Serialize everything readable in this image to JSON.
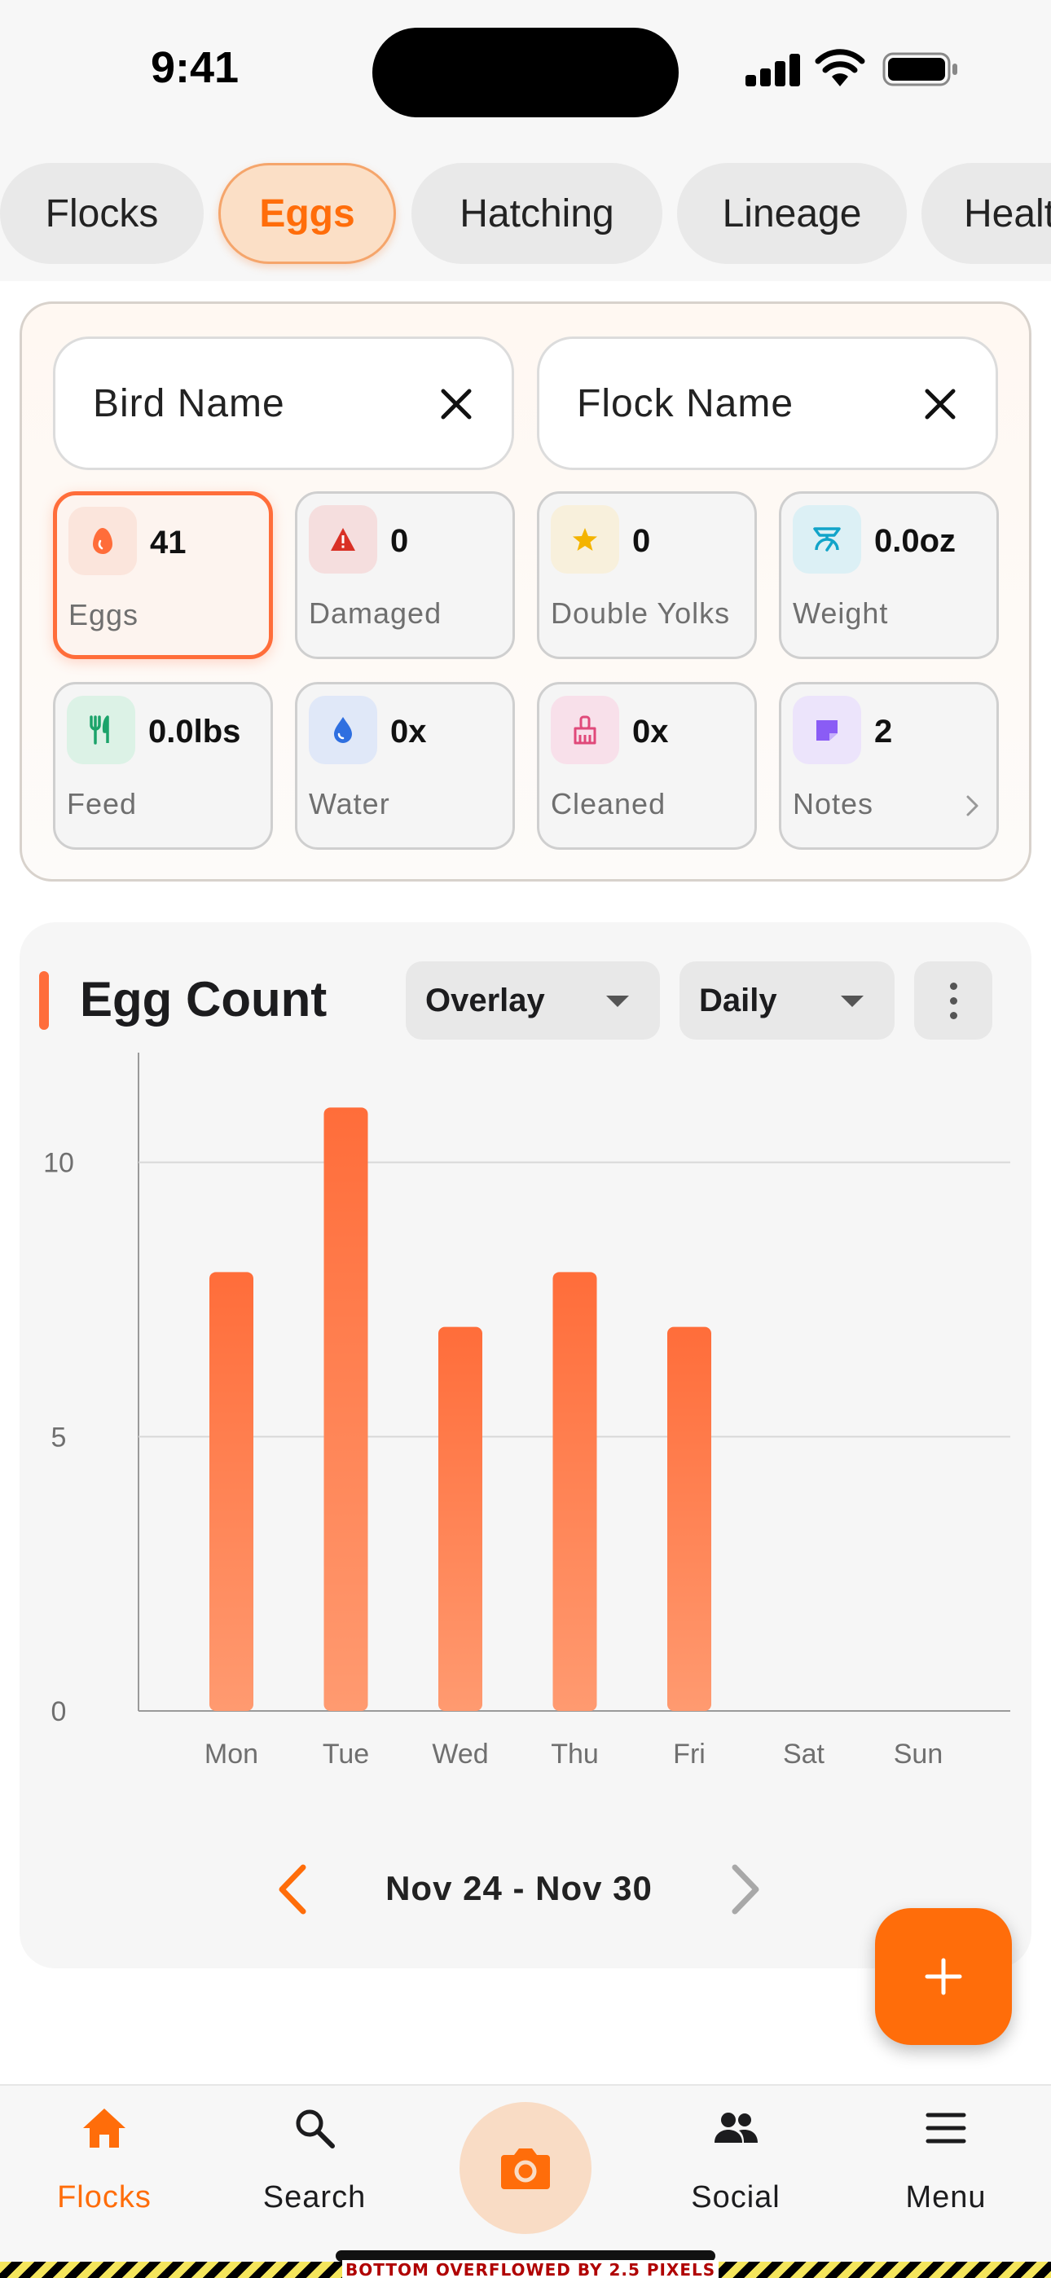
{
  "status_bar": {
    "time": "9:41"
  },
  "tabs": [
    {
      "label": "Flocks"
    },
    {
      "label": "Eggs",
      "active": true
    },
    {
      "label": "Hatching"
    },
    {
      "label": "Lineage"
    },
    {
      "label": "Healt"
    }
  ],
  "filters": {
    "bird_name": {
      "placeholder": "Bird Name",
      "icon": "close-icon"
    },
    "flock_name": {
      "placeholder": "Flock Name",
      "icon": "close-icon"
    }
  },
  "stats": [
    {
      "value": "41",
      "label": "Eggs",
      "icon": "egg-icon",
      "color": "#ff6d3a",
      "bg": "#fbe5dc",
      "active": true
    },
    {
      "value": "0",
      "label": "Damaged",
      "icon": "warning-icon",
      "color": "#d93025",
      "bg": "#f5dede"
    },
    {
      "value": "0",
      "label": "Double Yolks",
      "icon": "star-icon",
      "color": "#f4b400",
      "bg": "#f8f0dc"
    },
    {
      "value": "0.0oz",
      "label": "Weight",
      "icon": "scale-icon",
      "color": "#12a4c9",
      "bg": "#dcf0f5"
    },
    {
      "value": "0.0lbs",
      "label": "Feed",
      "icon": "utensils-icon",
      "color": "#1ba36a",
      "bg": "#dcf2e6"
    },
    {
      "value": "0x",
      "label": "Water",
      "icon": "water-drop-icon",
      "color": "#2f6fe0",
      "bg": "#e0e8f8"
    },
    {
      "value": "0x",
      "label": "Cleaned",
      "icon": "broom-icon",
      "color": "#e0497a",
      "bg": "#f8e0ea"
    },
    {
      "value": "2",
      "label": "Notes",
      "icon": "note-icon",
      "color": "#8a5cf5",
      "bg": "#ece4fb"
    }
  ],
  "chart_section": {
    "title": "Egg Count",
    "mode_dropdown": "Overlay",
    "period_dropdown": "Daily",
    "date_range": "Nov 24 - Nov 30",
    "accent_color": "#ff6d3a"
  },
  "chart_data": {
    "type": "bar",
    "title": "Egg Count",
    "categories": [
      "Mon",
      "Tue",
      "Wed",
      "Thu",
      "Fri",
      "Sat",
      "Sun"
    ],
    "values": [
      8,
      11,
      7,
      8,
      7,
      0,
      0
    ],
    "ylim": [
      0,
      12
    ],
    "yticks": [
      0,
      5,
      10
    ],
    "grid": true,
    "bar_color_top": "#ff6d3a",
    "bar_color_bottom": "#ff9a70"
  },
  "bottom_nav": [
    {
      "label": "Flocks",
      "icon": "home-icon",
      "active": true
    },
    {
      "label": "Search",
      "icon": "search-icon"
    },
    {
      "label": "",
      "icon": "camera-icon"
    },
    {
      "label": "Social",
      "icon": "people-icon"
    },
    {
      "label": "Menu",
      "icon": "menu-icon"
    }
  ],
  "debug_banner": "BOTTOM OVERFLOWED BY 2.5 PIXELS"
}
